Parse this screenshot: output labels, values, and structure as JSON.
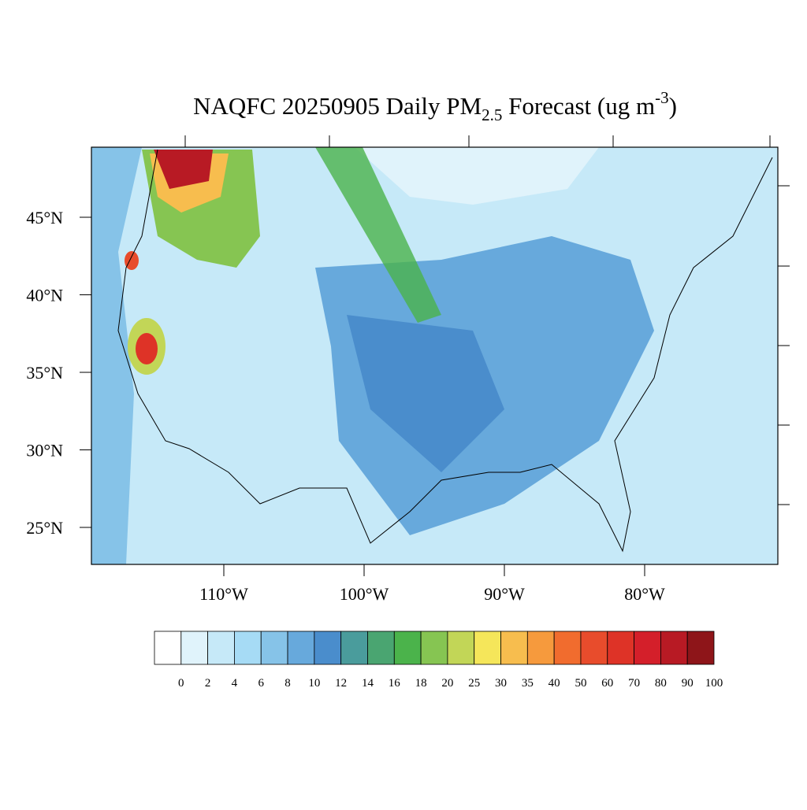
{
  "map": {
    "title": {
      "main": "NAQFC 20250905 Daily PM",
      "subscript": "2.5",
      "after": " Forecast (ug m",
      "superscript": "-3",
      "close": ")"
    },
    "lat_ticks": [
      {
        "value": 45,
        "label": "45°N"
      },
      {
        "value": 40,
        "label": "40°N"
      },
      {
        "value": 35,
        "label": "35°N"
      },
      {
        "value": 30,
        "label": "30°N"
      },
      {
        "value": 25,
        "label": "25°N"
      }
    ],
    "lon_ticks": [
      {
        "value": -110,
        "label": "110°W"
      },
      {
        "value": -100,
        "label": "100°W"
      },
      {
        "value": -90,
        "label": "90°W"
      },
      {
        "value": -80,
        "label": "80°W"
      }
    ],
    "colorbar": {
      "levels": [
        0,
        2,
        4,
        6,
        8,
        10,
        12,
        14,
        16,
        18,
        20,
        25,
        30,
        35,
        40,
        50,
        60,
        70,
        80,
        90,
        100
      ],
      "colors": [
        "#ffffff",
        "#e0f3fb",
        "#c6e9f8",
        "#a6dbf5",
        "#86c3e8",
        "#67a9dc",
        "#4a8dcc",
        "#4a9c9c",
        "#4aa571",
        "#4bb34b",
        "#86c552",
        "#c2d657",
        "#f5e65a",
        "#f7bd4e",
        "#f69a3d",
        "#f16c2e",
        "#e84c2c",
        "#de3327",
        "#d41f2a",
        "#b81a24",
        "#8e1519"
      ]
    }
  }
}
